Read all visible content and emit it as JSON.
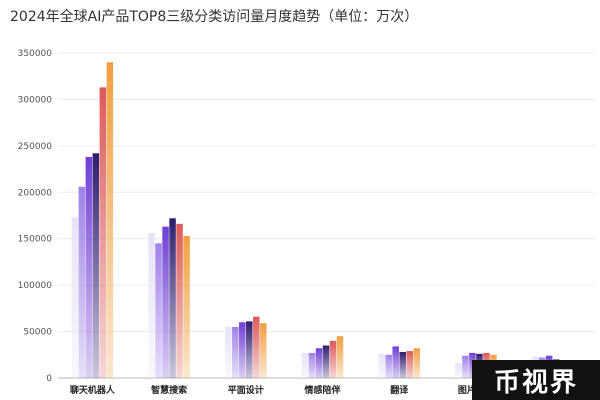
{
  "chart_data": {
    "type": "bar",
    "title": "2024年全球AI产品TOP8三级分类访问量月度趋势（单位：万次）",
    "categories": [
      "聊天机器人",
      "智慧搜索",
      "平面设计",
      "情感陪伴",
      "翻译",
      "图片生成",
      ""
    ],
    "ylim": [
      0,
      350000
    ],
    "yticks": [
      0,
      50000,
      100000,
      150000,
      200000,
      250000,
      300000,
      350000
    ],
    "grid": true,
    "series_colors": [
      "#e8e2f8",
      "#9f82e8",
      "#6f3fd6",
      "#2e1d6e",
      "#dd5a5a",
      "#f0a040"
    ],
    "series_values": [
      [
        173000,
        206000,
        238000,
        242000,
        313000,
        340000
      ],
      [
        156000,
        145000,
        163000,
        172000,
        166000,
        153000
      ],
      [
        55000,
        55000,
        60000,
        61000,
        66000,
        59000
      ],
      [
        27000,
        27000,
        32000,
        35000,
        40000,
        45000
      ],
      [
        26000,
        25000,
        34000,
        28000,
        29000,
        32000
      ],
      [
        16000,
        24000,
        27000,
        26000,
        27000,
        25000
      ],
      [
        23000,
        22000,
        24000,
        20000,
        18000,
        0
      ]
    ]
  },
  "watermark": "币视界"
}
